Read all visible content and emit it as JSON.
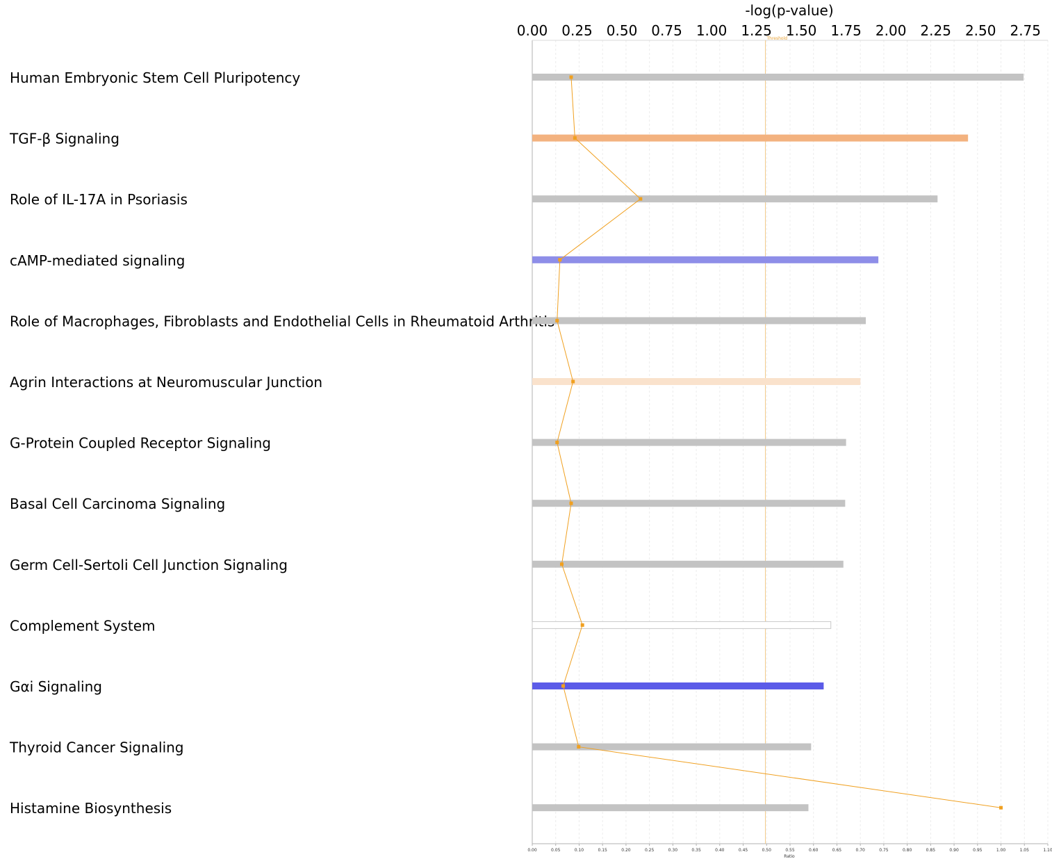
{
  "chart_data": {
    "type": "bar",
    "orientation": "horizontal",
    "title": "",
    "top_axis": {
      "label": "-log(p-value)",
      "range": [
        0,
        2.875
      ],
      "ticks": [
        "0.00",
        "0.25",
        "0.50",
        "0.75",
        "1.00",
        "1.25",
        "1.50",
        "1.75",
        "2.00",
        "2.25",
        "2.50",
        "2.75"
      ]
    },
    "bottom_axis": {
      "label": "Ratio",
      "range": [
        0,
        1.1
      ],
      "ticks": [
        "0.00",
        "0.05",
        "0.10",
        "0.15",
        "0.20",
        "0.25",
        "0.30",
        "0.35",
        "0.40",
        "0.45",
        "0.50",
        "0.55",
        "0.60",
        "0.65",
        "0.70",
        "0.75",
        "0.80",
        "0.85",
        "0.90",
        "0.95",
        "1.00",
        "1.05",
        "1.10"
      ]
    },
    "threshold": {
      "label": "Threshold",
      "value": 1.3
    },
    "grid": true,
    "categories": [
      "Human Embryonic Stem Cell Pluripotency",
      "TGF-β Signaling",
      "Role of IL-17A in Psoriasis",
      "cAMP-mediated signaling",
      "Role of Macrophages, Fibroblasts and Endothelial Cells in Rheumatoid Arthritis",
      "Agrin Interactions at Neuromuscular Junction",
      "G-Protein Coupled Receptor Signaling",
      "Basal Cell Carcinoma Signaling",
      "Germ Cell-Sertoli Cell Junction Signaling",
      "Complement System",
      "Gαi Signaling",
      "Thyroid Cancer Signaling",
      "Histamine Biosynthesis"
    ],
    "series": [
      {
        "values": [
          2.74,
          2.43,
          2.26,
          1.93,
          1.86,
          1.83,
          1.75,
          1.745,
          1.735,
          1.665,
          1.625,
          1.555,
          1.54
        ]
      },
      {
        "values": [
          0.083,
          0.091,
          0.231,
          0.059,
          0.053,
          0.087,
          0.053,
          0.083,
          0.063,
          0.107,
          0.066,
          0.099,
          1.0
        ]
      }
    ],
    "bar_colors": [
      "#c3c3c3",
      "#f3b27f",
      "#c3c3c3",
      "#8e8ee8",
      "#c3c3c3",
      "#fae2cc",
      "#c3c3c3",
      "#c3c3c3",
      "#c3c3c3",
      "#ffffff",
      "#5b5be8",
      "#c3c3c3",
      "#c3c3c3"
    ],
    "line_color": "#f0a020",
    "threshold_color": "#f2c98a"
  }
}
